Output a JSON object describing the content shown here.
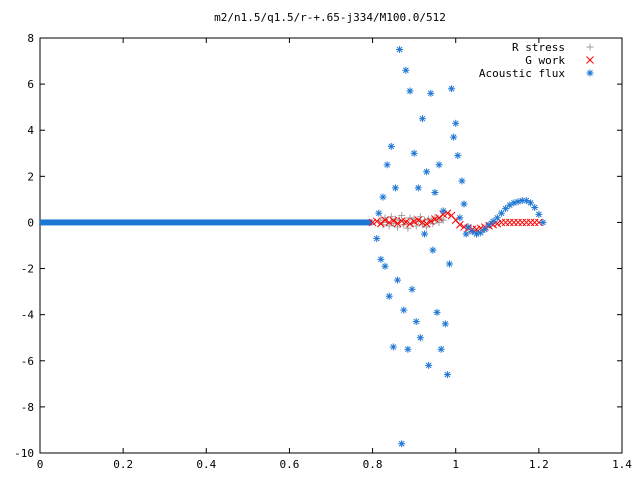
{
  "chart_data": {
    "type": "scatter",
    "title": "m2/n1.5/q1.5/r-+.65-j334/M100.0/512",
    "xlabel": "",
    "ylabel": "",
    "xlim": [
      0,
      1.4
    ],
    "ylim": [
      -10,
      8
    ],
    "x_ticks": [
      "0",
      "0.2",
      "0.4",
      "0.6",
      "0.8",
      "1",
      "1.2",
      "1.4"
    ],
    "y_ticks": [
      "-10",
      "-8",
      "-6",
      "-4",
      "-2",
      "0",
      "2",
      "4",
      "6",
      "8"
    ],
    "grid": false,
    "legend_position": "top-right",
    "series": [
      {
        "name": "R stress",
        "marker": "plus",
        "color": "#a0a0a0",
        "points": [
          [
            0.82,
            0.1
          ],
          [
            0.825,
            -0.1
          ],
          [
            0.83,
            0.2
          ],
          [
            0.835,
            0.0
          ],
          [
            0.84,
            -0.15
          ],
          [
            0.845,
            0.25
          ],
          [
            0.85,
            -0.05
          ],
          [
            0.855,
            0.15
          ],
          [
            0.86,
            -0.2
          ],
          [
            0.865,
            0.1
          ],
          [
            0.87,
            0.3
          ],
          [
            0.875,
            -0.1
          ],
          [
            0.88,
            0.05
          ],
          [
            0.885,
            -0.25
          ],
          [
            0.89,
            0.2
          ],
          [
            0.895,
            -0.05
          ],
          [
            0.9,
            0.15
          ],
          [
            0.905,
            -0.15
          ],
          [
            0.91,
            0.05
          ],
          [
            0.915,
            0.25
          ],
          [
            0.92,
            -0.1
          ],
          [
            0.925,
            0.1
          ],
          [
            0.93,
            -0.2
          ],
          [
            0.935,
            0.15
          ],
          [
            0.94,
            0.05
          ],
          [
            0.945,
            -0.05
          ],
          [
            0.95,
            0.2
          ],
          [
            0.955,
            0.1
          ],
          [
            0.96,
            0.0
          ],
          [
            0.965,
            0.15
          ],
          [
            0.97,
            0.1
          ]
        ]
      },
      {
        "name": "G work",
        "marker": "cross",
        "color": "#ff0000",
        "points": [
          [
            0.8,
            0.0
          ],
          [
            0.81,
            0.05
          ],
          [
            0.82,
            -0.05
          ],
          [
            0.83,
            0.1
          ],
          [
            0.84,
            0.0
          ],
          [
            0.85,
            0.08
          ],
          [
            0.86,
            -0.04
          ],
          [
            0.87,
            0.06
          ],
          [
            0.88,
            0.02
          ],
          [
            0.89,
            -0.06
          ],
          [
            0.9,
            0.04
          ],
          [
            0.91,
            0.1
          ],
          [
            0.92,
            0.0
          ],
          [
            0.93,
            -0.05
          ],
          [
            0.94,
            0.05
          ],
          [
            0.95,
            0.15
          ],
          [
            0.96,
            0.2
          ],
          [
            0.97,
            0.35
          ],
          [
            0.98,
            0.4
          ],
          [
            0.99,
            0.3
          ],
          [
            1.0,
            0.1
          ],
          [
            1.01,
            -0.1
          ],
          [
            1.02,
            -0.2
          ],
          [
            1.03,
            -0.25
          ],
          [
            1.04,
            -0.3
          ],
          [
            1.05,
            -0.3
          ],
          [
            1.06,
            -0.25
          ],
          [
            1.07,
            -0.2
          ],
          [
            1.08,
            -0.15
          ],
          [
            1.09,
            -0.1
          ],
          [
            1.1,
            -0.05
          ],
          [
            1.11,
            0.0
          ],
          [
            1.12,
            0.0
          ],
          [
            1.13,
            0.0
          ],
          [
            1.14,
            0.0
          ],
          [
            1.15,
            0.0
          ],
          [
            1.16,
            0.0
          ],
          [
            1.17,
            0.0
          ],
          [
            1.18,
            0.0
          ],
          [
            1.19,
            0.0
          ],
          [
            1.2,
            0.0
          ]
        ]
      },
      {
        "name": "Acoustic flux",
        "marker": "star",
        "color": "#1f77d4",
        "points": [
          [
            0.81,
            -0.7
          ],
          [
            0.815,
            0.4
          ],
          [
            0.82,
            -1.6
          ],
          [
            0.825,
            1.1
          ],
          [
            0.83,
            -1.9
          ],
          [
            0.835,
            2.5
          ],
          [
            0.84,
            -3.2
          ],
          [
            0.845,
            3.3
          ],
          [
            0.85,
            -5.4
          ],
          [
            0.855,
            1.5
          ],
          [
            0.86,
            -2.5
          ],
          [
            0.865,
            7.5
          ],
          [
            0.87,
            -9.6
          ],
          [
            0.875,
            -3.8
          ],
          [
            0.88,
            6.6
          ],
          [
            0.885,
            -5.5
          ],
          [
            0.89,
            5.7
          ],
          [
            0.895,
            -2.9
          ],
          [
            0.9,
            3.0
          ],
          [
            0.905,
            -4.3
          ],
          [
            0.91,
            1.5
          ],
          [
            0.915,
            -5.0
          ],
          [
            0.92,
            4.5
          ],
          [
            0.925,
            -0.5
          ],
          [
            0.93,
            2.2
          ],
          [
            0.935,
            -6.2
          ],
          [
            0.94,
            5.6
          ],
          [
            0.945,
            -1.2
          ],
          [
            0.95,
            1.3
          ],
          [
            0.955,
            -3.9
          ],
          [
            0.96,
            2.5
          ],
          [
            0.965,
            -5.5
          ],
          [
            0.97,
            0.5
          ],
          [
            0.975,
            -4.4
          ],
          [
            0.98,
            -6.6
          ],
          [
            0.985,
            -1.8
          ],
          [
            0.99,
            5.8
          ],
          [
            0.995,
            3.7
          ],
          [
            1.0,
            4.3
          ],
          [
            1.005,
            2.9
          ],
          [
            1.01,
            0.2
          ],
          [
            1.015,
            1.8
          ],
          [
            1.02,
            0.8
          ],
          [
            1.025,
            -0.5
          ],
          [
            1.03,
            -0.2
          ],
          [
            1.04,
            -0.4
          ],
          [
            1.05,
            -0.5
          ],
          [
            1.06,
            -0.45
          ],
          [
            1.07,
            -0.3
          ],
          [
            1.08,
            -0.1
          ],
          [
            1.09,
            0.05
          ],
          [
            1.1,
            0.2
          ],
          [
            1.11,
            0.4
          ],
          [
            1.12,
            0.6
          ],
          [
            1.13,
            0.75
          ],
          [
            1.14,
            0.85
          ],
          [
            1.15,
            0.9
          ],
          [
            1.16,
            0.95
          ],
          [
            1.17,
            0.95
          ],
          [
            1.18,
            0.85
          ],
          [
            1.19,
            0.65
          ],
          [
            1.2,
            0.35
          ],
          [
            1.21,
            0.0
          ]
        ]
      }
    ]
  }
}
